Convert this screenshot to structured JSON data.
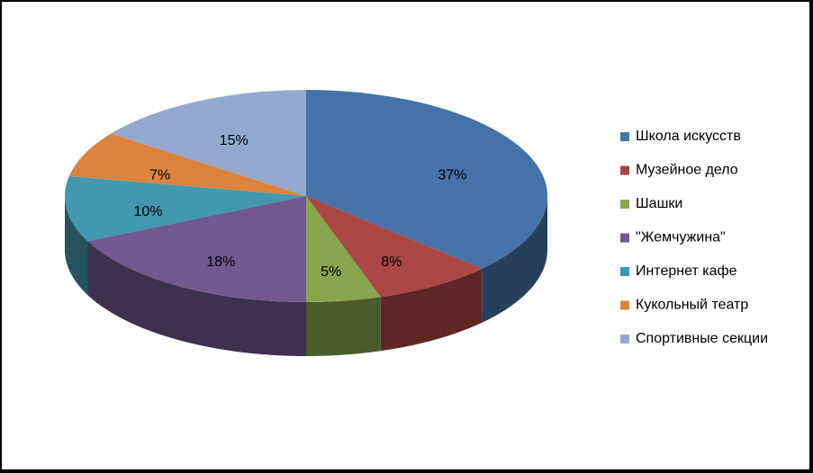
{
  "chart_data": {
    "type": "pie",
    "categories": [
      "Школа искусств",
      "Музейное дело",
      "Шашки",
      "\"Жемчужина\"",
      "Интернет кафе",
      "Кукольный театр",
      "Спортивные секции"
    ],
    "values": [
      37,
      8,
      5,
      18,
      10,
      7,
      15
    ],
    "value_labels": [
      "37%",
      "8%",
      "5%",
      "18%",
      "10%",
      "7%",
      "15%"
    ],
    "colors": [
      "#4572a7",
      "#aa4643",
      "#89a54e",
      "#71588f",
      "#4198af",
      "#db843d",
      "#93a9cf"
    ],
    "legend": "right"
  }
}
